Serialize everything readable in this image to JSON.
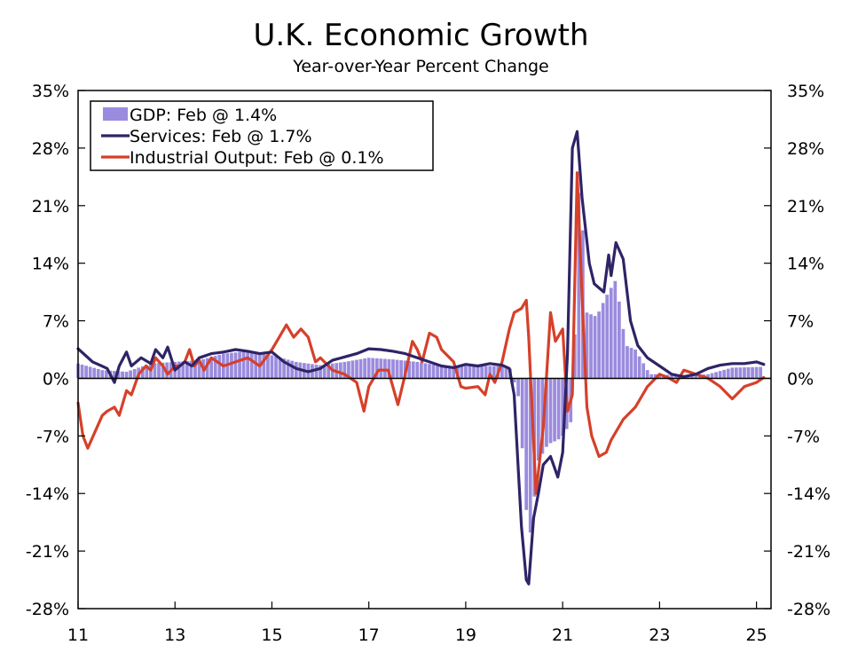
{
  "chart_data": {
    "type": "line",
    "title": "U.K. Economic Growth",
    "subtitle": "Year-over-Year Percent Change",
    "xlabel": "",
    "ylabel": "",
    "x_start": 2011.0,
    "x_end": 2025.3,
    "xlim": [
      2011.0,
      2025.3
    ],
    "ylim": [
      -28,
      35
    ],
    "x_ticks": [
      2011,
      2013,
      2015,
      2017,
      2019,
      2021,
      2023,
      2025
    ],
    "x_tick_labels": [
      "11",
      "13",
      "15",
      "17",
      "19",
      "21",
      "23",
      "25"
    ],
    "y_ticks": [
      -28,
      -21,
      -14,
      -7,
      0,
      7,
      14,
      21,
      28,
      35
    ],
    "y_tick_labels": [
      "-28%",
      "-21%",
      "-14%",
      "-7%",
      "0%",
      "7%",
      "14%",
      "21%",
      "28%",
      "35%"
    ],
    "legend_position": "top-left",
    "series": [
      {
        "name": "GDP: Feb @ 1.4%",
        "style": "bar",
        "color": "#9b8bde",
        "x": [
          2011.0,
          2011.5,
          2012.0,
          2012.5,
          2013.0,
          2013.5,
          2014.0,
          2014.5,
          2015.0,
          2015.5,
          2016.0,
          2016.5,
          2017.0,
          2017.5,
          2018.0,
          2018.5,
          2019.0,
          2019.5,
          2019.9,
          2020.1,
          2020.3,
          2020.5,
          2020.7,
          2020.9,
          2021.0,
          2021.2,
          2021.35,
          2021.5,
          2021.7,
          2021.9,
          2022.1,
          2022.3,
          2022.5,
          2022.8,
          2023.0,
          2023.5,
          2024.0,
          2024.5,
          2025.15
        ],
        "values": [
          1.8,
          1.0,
          0.8,
          1.8,
          2.0,
          2.2,
          3.0,
          3.3,
          2.8,
          2.0,
          1.6,
          2.0,
          2.5,
          2.3,
          2.0,
          1.5,
          1.5,
          1.5,
          1.5,
          -2.5,
          -20.5,
          -10.0,
          -8.0,
          -7.5,
          -7.0,
          -5.0,
          26.0,
          8.0,
          7.5,
          10.0,
          12.0,
          4.0,
          3.5,
          0.5,
          0.5,
          0.3,
          0.5,
          1.3,
          1.4
        ]
      },
      {
        "name": "Services: Feb @ 1.7%",
        "style": "line",
        "color": "#2e2466",
        "x": [
          2011.0,
          2011.15,
          2011.3,
          2011.45,
          2011.6,
          2011.75,
          2011.85,
          2012.0,
          2012.1,
          2012.3,
          2012.5,
          2012.6,
          2012.75,
          2012.85,
          2013.0,
          2013.2,
          2013.35,
          2013.5,
          2013.75,
          2014.0,
          2014.25,
          2014.5,
          2014.75,
          2015.0,
          2015.25,
          2015.5,
          2015.75,
          2016.0,
          2016.25,
          2016.5,
          2016.75,
          2017.0,
          2017.25,
          2017.5,
          2017.75,
          2018.0,
          2018.25,
          2018.5,
          2018.75,
          2019.0,
          2019.25,
          2019.5,
          2019.75,
          2019.9,
          2020.0,
          2020.15,
          2020.25,
          2020.3,
          2020.4,
          2020.5,
          2020.6,
          2020.75,
          2020.9,
          2021.0,
          2021.1,
          2021.2,
          2021.3,
          2021.4,
          2021.55,
          2021.65,
          2021.75,
          2021.85,
          2021.95,
          2022.0,
          2022.1,
          2022.25,
          2022.4,
          2022.55,
          2022.75,
          2023.0,
          2023.25,
          2023.5,
          2023.75,
          2024.0,
          2024.25,
          2024.5,
          2024.75,
          2025.0,
          2025.15
        ],
        "values": [
          3.6,
          2.8,
          2.0,
          1.6,
          1.2,
          -0.5,
          1.5,
          3.2,
          1.5,
          2.5,
          1.8,
          3.5,
          2.5,
          3.8,
          1.0,
          2.0,
          1.5,
          2.5,
          3.0,
          3.2,
          3.5,
          3.3,
          3.0,
          3.2,
          2.0,
          1.2,
          0.8,
          1.2,
          2.2,
          2.6,
          3.0,
          3.6,
          3.5,
          3.3,
          3.0,
          2.5,
          2.0,
          1.5,
          1.3,
          1.7,
          1.5,
          1.8,
          1.6,
          1.2,
          -2.0,
          -18.0,
          -24.5,
          -25.0,
          -17.0,
          -14.0,
          -10.5,
          -9.5,
          -12.0,
          -9.0,
          3.0,
          28.0,
          30.0,
          22.0,
          14.0,
          11.5,
          11.0,
          10.5,
          15.0,
          12.5,
          16.5,
          14.5,
          7.0,
          4.0,
          2.5,
          1.5,
          0.5,
          0.2,
          0.5,
          1.2,
          1.6,
          1.8,
          1.8,
          2.0,
          1.7
        ]
      },
      {
        "name": "Industrial Output: Feb @ 0.1%",
        "style": "line",
        "color": "#d6402a",
        "x": [
          2011.0,
          2011.1,
          2011.2,
          2011.35,
          2011.5,
          2011.6,
          2011.75,
          2011.85,
          2012.0,
          2012.1,
          2012.25,
          2012.4,
          2012.5,
          2012.6,
          2012.75,
          2012.85,
          2013.0,
          2013.1,
          2013.2,
          2013.3,
          2013.4,
          2013.5,
          2013.6,
          2013.75,
          2014.0,
          2014.25,
          2014.5,
          2014.75,
          2015.0,
          2015.15,
          2015.3,
          2015.45,
          2015.6,
          2015.75,
          2015.9,
          2016.0,
          2016.25,
          2016.5,
          2016.75,
          2016.9,
          2017.0,
          2017.2,
          2017.4,
          2017.6,
          2017.75,
          2017.9,
          2018.0,
          2018.1,
          2018.25,
          2018.4,
          2018.5,
          2018.75,
          2018.9,
          2019.0,
          2019.25,
          2019.4,
          2019.5,
          2019.6,
          2019.75,
          2019.9,
          2020.0,
          2020.15,
          2020.25,
          2020.3,
          2020.45,
          2020.6,
          2020.75,
          2020.85,
          2021.0,
          2021.1,
          2021.2,
          2021.3,
          2021.4,
          2021.5,
          2021.6,
          2021.75,
          2021.9,
          2022.0,
          2022.25,
          2022.5,
          2022.75,
          2023.0,
          2023.2,
          2023.35,
          2023.5,
          2023.75,
          2024.0,
          2024.25,
          2024.5,
          2024.75,
          2025.0,
          2025.15
        ],
        "values": [
          -3.0,
          -7.0,
          -8.5,
          -6.5,
          -4.5,
          -4.0,
          -3.5,
          -4.5,
          -1.5,
          -2.0,
          0.5,
          1.5,
          1.0,
          2.5,
          1.5,
          0.5,
          1.5,
          1.5,
          2.0,
          3.5,
          1.5,
          2.2,
          1.0,
          2.5,
          1.5,
          2.0,
          2.5,
          1.5,
          3.5,
          5.0,
          6.5,
          5.0,
          6.0,
          5.0,
          2.0,
          2.5,
          1.0,
          0.5,
          -0.5,
          -4.0,
          -1.0,
          1.0,
          1.0,
          -3.2,
          0.5,
          4.5,
          3.5,
          2.0,
          5.5,
          5.0,
          3.5,
          2.0,
          -1.0,
          -1.2,
          -1.0,
          -2.0,
          0.5,
          -0.5,
          2.0,
          6.0,
          8.0,
          8.5,
          9.5,
          5.0,
          -14.0,
          -6.0,
          8.0,
          4.5,
          6.0,
          -4.0,
          -2.0,
          25.0,
          10.0,
          -3.5,
          -7.0,
          -9.5,
          -9.0,
          -7.5,
          -5.0,
          -3.5,
          -1.0,
          0.5,
          0.0,
          -0.5,
          1.0,
          0.5,
          0.0,
          -1.0,
          -2.5,
          -1.0,
          -0.5,
          0.1
        ]
      }
    ]
  }
}
